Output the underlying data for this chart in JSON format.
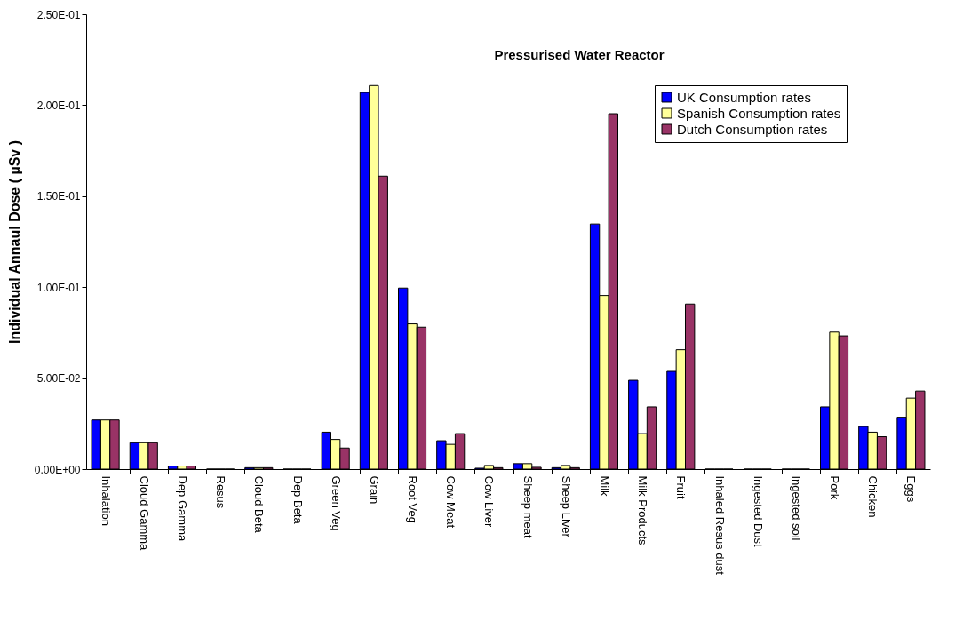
{
  "chart_data": {
    "type": "bar",
    "title": "Pressurised Water Reactor",
    "ylabel": "Individual Annaul Dose ( µSv )",
    "categories": [
      "Inhalation",
      "Cloud Gamma",
      "Dep Gamma",
      "Resus",
      "Cloud Beta",
      "Dep Beta",
      "Green Veg",
      "Grain",
      "Root Veg",
      "Cow Meat",
      "Cow Liver",
      "Sheep meat",
      "Sheep Liver",
      "Milk",
      "Milk Products",
      "Fruit",
      "Inhaled Resus dust",
      "Ingested Dust",
      "Ingested soil",
      "Pork",
      "Chicken",
      "Eggs"
    ],
    "series": [
      {
        "name": "UK Consumption rates",
        "color": "#0000ff",
        "values": [
          0.027,
          0.0145,
          0.0017,
          0,
          0.0008,
          0,
          0.0203,
          0.207,
          0.0995,
          0.0156,
          0.0005,
          0.003,
          0.0008,
          0.1347,
          0.0488,
          0.0537,
          0,
          0,
          0,
          0.0342,
          0.0234,
          0.0285
        ]
      },
      {
        "name": "Spanish Consumption rates",
        "color": "#ffff99",
        "values": [
          0.027,
          0.0145,
          0.0017,
          0,
          0.0008,
          0,
          0.0163,
          0.2108,
          0.0798,
          0.0136,
          0.002,
          0.003,
          0.002,
          0.0954,
          0.0195,
          0.0656,
          0,
          0,
          0,
          0.0753,
          0.0203,
          0.039
        ]
      },
      {
        "name": "Dutch Consumption rates",
        "color": "#993366",
        "values": [
          0.027,
          0.0145,
          0.0017,
          0,
          0.0008,
          0,
          0.0116,
          0.161,
          0.078,
          0.0195,
          0.0008,
          0.001,
          0.0008,
          0.1953,
          0.0342,
          0.0907,
          0,
          0,
          0,
          0.0732,
          0.0178,
          0.0429
        ]
      }
    ],
    "ylim": [
      0,
      0.25
    ],
    "yticks": [
      {
        "value": 0,
        "label": "0.00E+00"
      },
      {
        "value": 0.05,
        "label": "5.00E-02"
      },
      {
        "value": 0.1,
        "label": "1.00E-01"
      },
      {
        "value": 0.15,
        "label": "1.50E-01"
      },
      {
        "value": 0.2,
        "label": "2.00E-01"
      },
      {
        "value": 0.25,
        "label": "2.50E-01"
      }
    ],
    "grid": false,
    "legend": "top right"
  }
}
